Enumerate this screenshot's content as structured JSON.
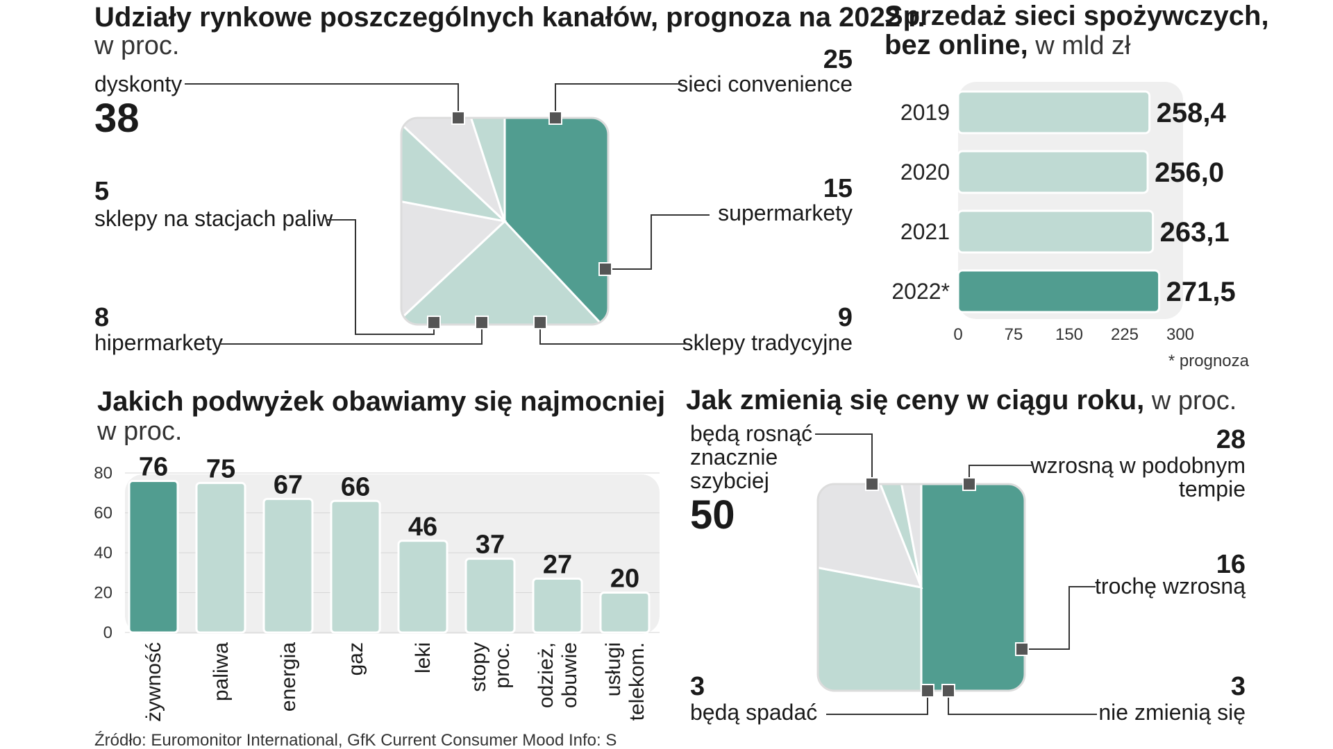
{
  "colors": {
    "dark": "#519d90",
    "light": "#bfdad3",
    "gray": "#e4e4e6",
    "panel": "#efefef",
    "text": "#1a1a1a"
  },
  "chart_data": [
    {
      "type": "pie",
      "title": "Udziały rynkowe poszczególnych kanałów, prognoza na 2022 r.",
      "subtitle": "w proc.",
      "slices": [
        {
          "label": "dyskonty",
          "value": 38,
          "value_text": "38"
        },
        {
          "label": "sieci convenience",
          "value": 25,
          "value_text": "25"
        },
        {
          "label": "supermarkety",
          "value": 15,
          "value_text": "15"
        },
        {
          "label": "sklepy tradycyjne",
          "value": 9,
          "value_text": "9"
        },
        {
          "label": "hipermarkety",
          "value": 8,
          "value_text": "8"
        },
        {
          "label": "sklepy na stacjach paliw",
          "value": 5,
          "value_text": "5"
        }
      ]
    },
    {
      "type": "bar",
      "orientation": "horizontal",
      "title": "Sprzedaż sieci spożywczych,",
      "title_line2_bold": "bez online,",
      "title_line2_rest": " w mld zł",
      "categories": [
        "2019",
        "2020",
        "2021",
        "2022*"
      ],
      "values": [
        258.4,
        256.0,
        263.1,
        271.5
      ],
      "value_labels": [
        "258,4",
        "256,0",
        "263,1",
        "271,5"
      ],
      "xlim": [
        0,
        300
      ],
      "ticks": [
        "0",
        "75",
        "150",
        "225",
        "300"
      ],
      "tick_values": [
        0,
        75,
        150,
        225,
        300
      ],
      "highlight_index": 3,
      "note": "* prognoza"
    },
    {
      "type": "bar",
      "title": "Jakich podwyżek obawiamy się najmocniej",
      "subtitle": "w proc.",
      "categories": [
        [
          "żywność"
        ],
        [
          "paliwa"
        ],
        [
          "energia"
        ],
        [
          "gaz"
        ],
        [
          "leki"
        ],
        [
          "stopy",
          "proc."
        ],
        [
          "odzież,",
          "obuwie"
        ],
        [
          "usługi",
          "telekom."
        ]
      ],
      "values": [
        76,
        75,
        67,
        66,
        46,
        37,
        27,
        20
      ],
      "value_labels": [
        "76",
        "75",
        "67",
        "66",
        "46",
        "37",
        "27",
        "20"
      ],
      "ylim": [
        0,
        80
      ],
      "ticks": [
        "0",
        "20",
        "40",
        "60",
        "80"
      ],
      "tick_values": [
        0,
        20,
        40,
        60,
        80
      ],
      "highlight_index": 0
    },
    {
      "type": "pie",
      "title": "Jak zmienią się ceny w ciągu roku,",
      "subtitle": " w proc.",
      "slices": [
        {
          "label": [
            "będą rosnąć",
            "znacznie",
            "szybciej"
          ],
          "value": 50,
          "value_text": "50"
        },
        {
          "label": [
            "wzrosną w podobnym",
            "tempie"
          ],
          "value": 28,
          "value_text": "28"
        },
        {
          "label": [
            "trochę wzrosną"
          ],
          "value": 16,
          "value_text": "16"
        },
        {
          "label": [
            "nie zmienią się"
          ],
          "value": 3,
          "value_text": "3"
        },
        {
          "label": [
            "będą spadać"
          ],
          "value": 3,
          "value_text": "3"
        }
      ]
    }
  ],
  "source": "Źródło: Euromonitor International, GfK Current Consumer Mood  Info: S"
}
